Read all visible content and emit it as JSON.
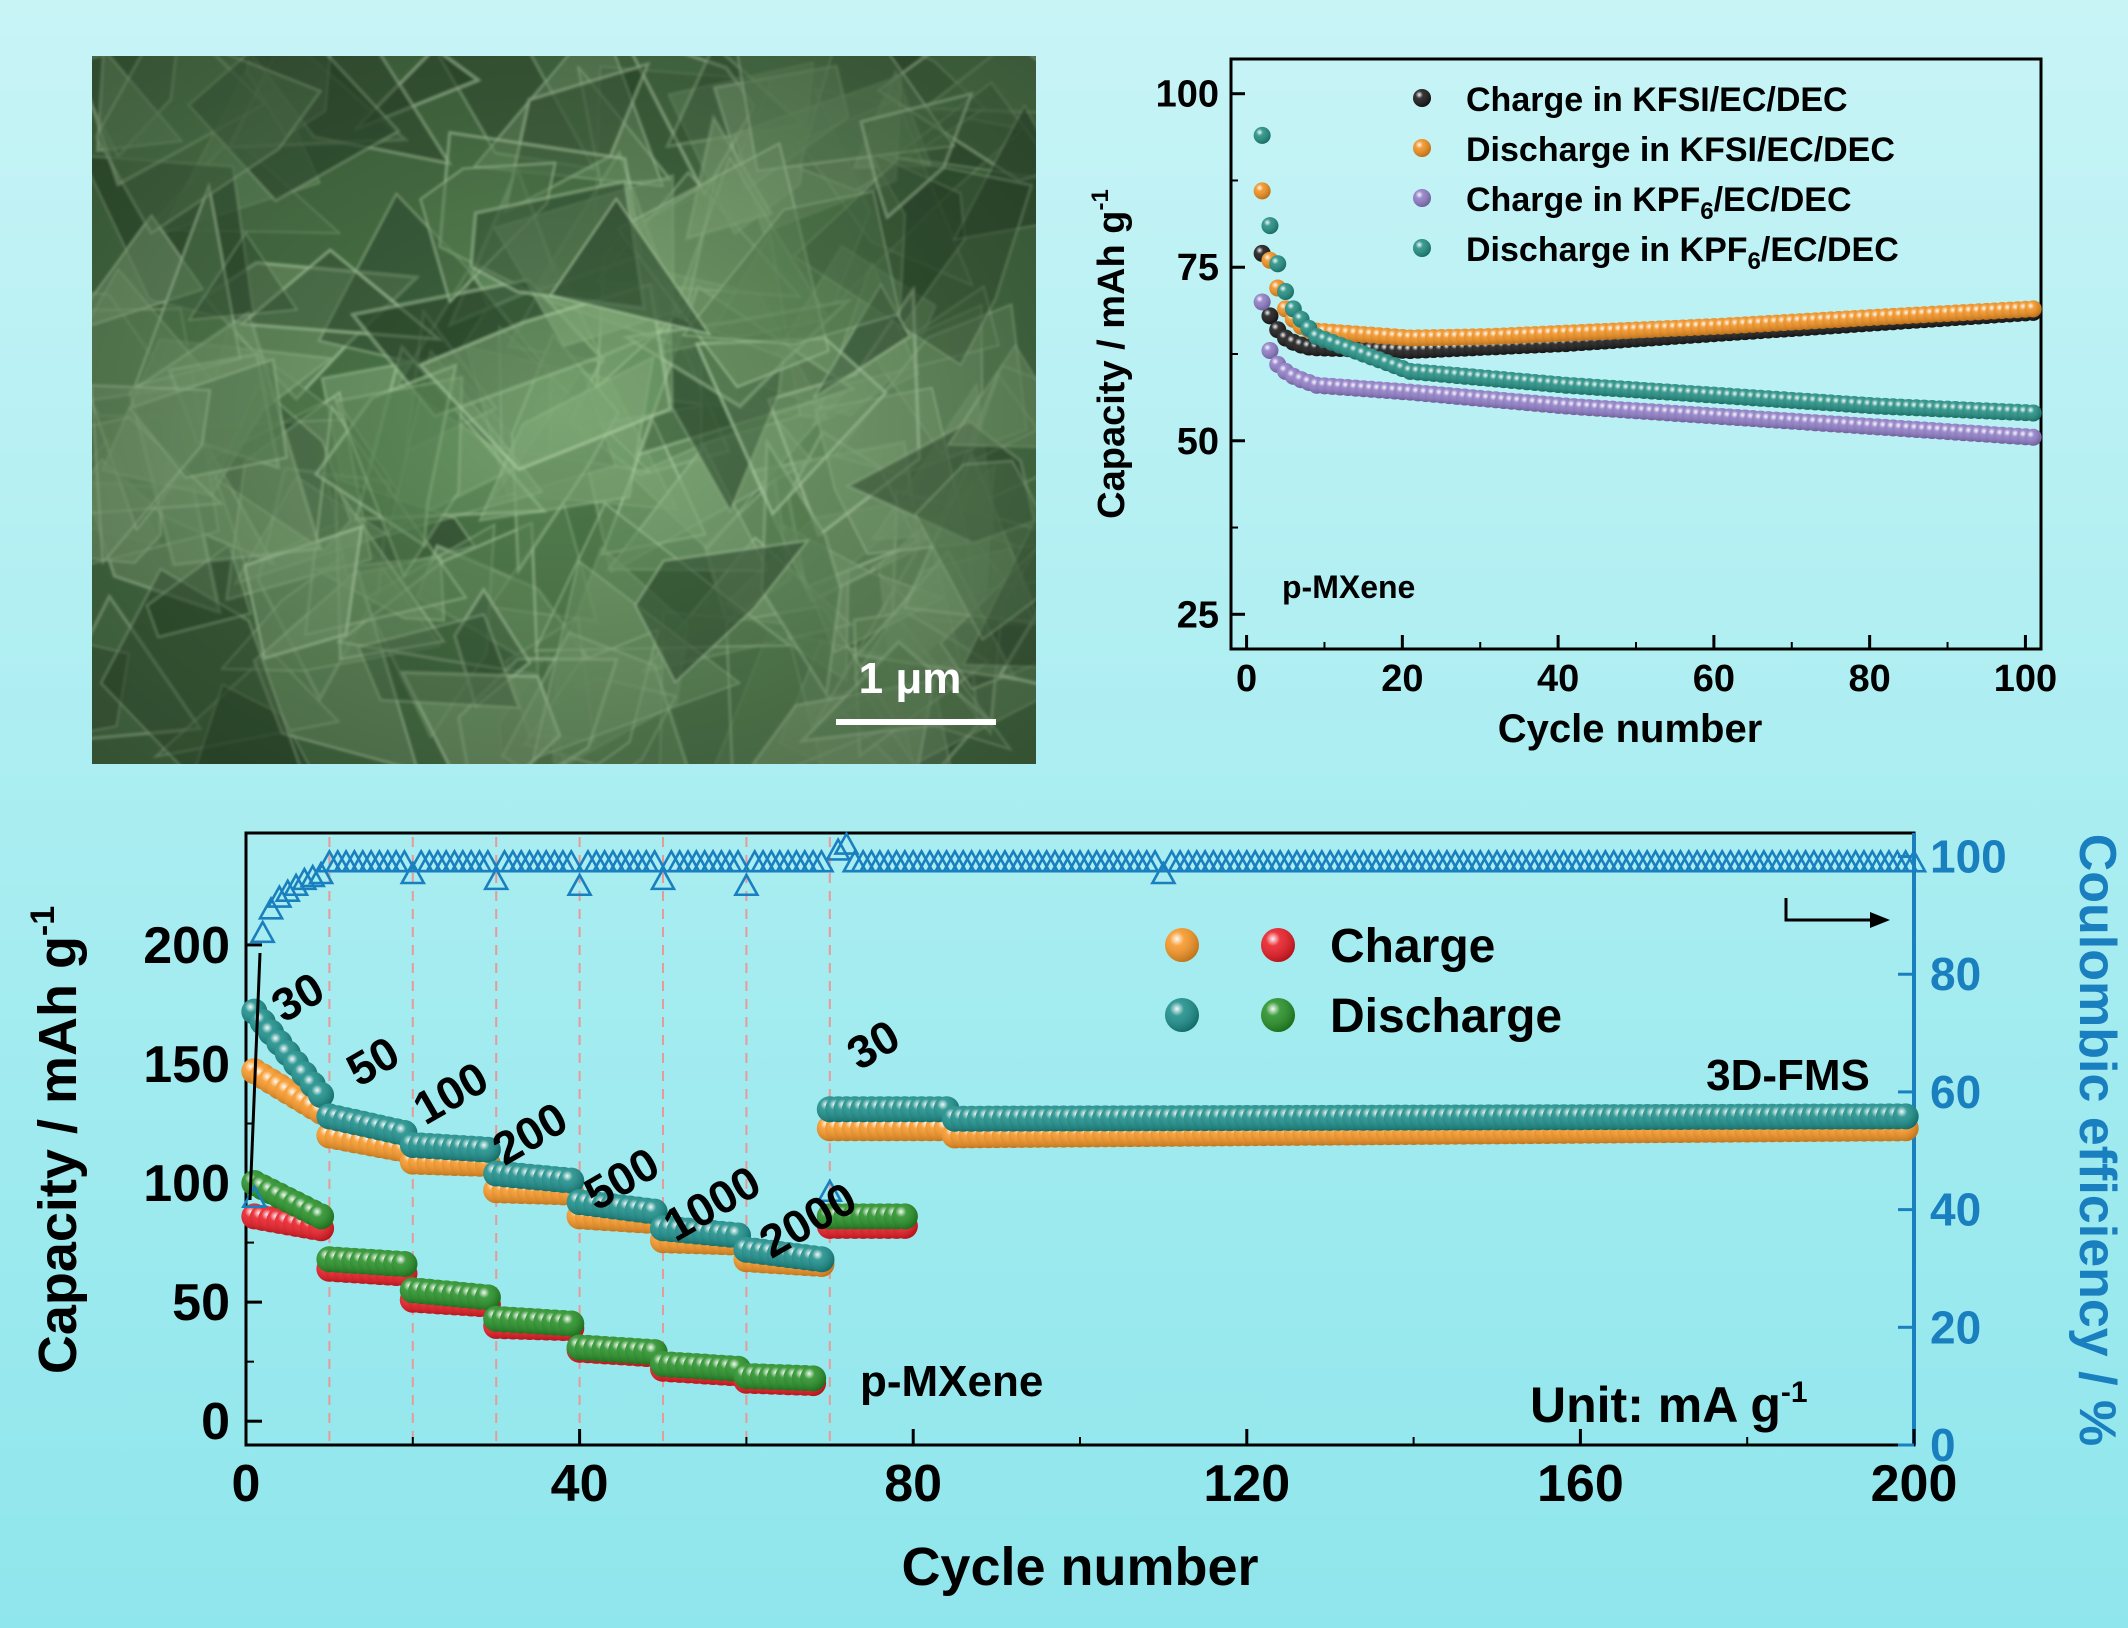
{
  "micrograph": {
    "scale_bar_label": "1 μm",
    "tint": "#5f8f5a"
  },
  "chart_data": [
    {
      "type": "scatter",
      "name_label": "p-MXene",
      "xlabel": "Cycle number",
      "ylabel": "Capacity / mAh g",
      "ylabel_sup": "-1",
      "xlim": [
        -2,
        102
      ],
      "ylim": [
        20,
        105
      ],
      "xticks": [
        0,
        20,
        40,
        60,
        80,
        100
      ],
      "yticks": [
        25,
        50,
        75,
        100
      ],
      "legend_position": "top-right",
      "series": [
        {
          "name": "Charge in KFSI/EC/DEC",
          "color": "#111111",
          "start_values": [
            77,
            68,
            66,
            64.8,
            64.2,
            63.8,
            63.5
          ],
          "tail": [
            [
              8,
              63.4
            ],
            [
              20,
              63.0
            ],
            [
              30,
              63.5
            ],
            [
              40,
              64.0
            ],
            [
              60,
              65.5
            ],
            [
              80,
              67.0
            ],
            [
              100,
              68.5
            ]
          ]
        },
        {
          "name": "Discharge in KFSI/EC/DEC",
          "color": "#f08c17",
          "start_values": [
            86,
            76,
            72,
            69,
            67.5,
            66.5,
            66
          ],
          "tail": [
            [
              8,
              65.8
            ],
            [
              20,
              64.8
            ],
            [
              30,
              65.0
            ],
            [
              40,
              65.5
            ],
            [
              60,
              66.5
            ],
            [
              80,
              67.8
            ],
            [
              100,
              69.0
            ]
          ]
        },
        {
          "name": "Charge in KPF6/EC/DEC",
          "color": "#8a77c4",
          "start_values": [
            70,
            63,
            61,
            60,
            59.3,
            58.8,
            58.4
          ],
          "tail": [
            [
              8,
              58.0
            ],
            [
              20,
              57.0
            ],
            [
              40,
              55.0
            ],
            [
              60,
              53.5
            ],
            [
              80,
              52.0
            ],
            [
              100,
              50.5
            ]
          ]
        },
        {
          "name": "Discharge in KPF6/EC/DEC",
          "color": "#1a8a7e",
          "start_values": [
            94,
            81,
            75.5,
            71.5,
            69,
            67.5,
            66.2
          ],
          "tail": [
            [
              8,
              65.0
            ],
            [
              14,
              62.5
            ],
            [
              20,
              60.0
            ],
            [
              30,
              59.0
            ],
            [
              40,
              58.0
            ],
            [
              60,
              56.5
            ],
            [
              80,
              55.0
            ],
            [
              100,
              54.0
            ]
          ]
        }
      ]
    },
    {
      "type": "scatter",
      "xlabel": "Cycle number",
      "ylabel": "Capacity / mAh g",
      "ylabel_sup": "-1",
      "y2label": "Coulombic efficiency / %",
      "xlim": [
        0,
        200
      ],
      "ylim": [
        -10,
        247
      ],
      "y2lim": [
        0,
        104
      ],
      "xticks": [
        0,
        40,
        80,
        120,
        160,
        200
      ],
      "yticks": [
        0,
        50,
        100,
        150,
        200
      ],
      "y2ticks": [
        0,
        20,
        40,
        60,
        80,
        100
      ],
      "rate_boundaries": [
        10,
        20,
        30,
        40,
        50,
        60,
        70
      ],
      "rate_labels": [
        {
          "text": "30",
          "x": 4.5,
          "y": 167
        },
        {
          "text": "50",
          "x": 13.5,
          "y": 140
        },
        {
          "text": "100",
          "x": 21.5,
          "y": 124
        },
        {
          "text": "200",
          "x": 31,
          "y": 107
        },
        {
          "text": "500",
          "x": 42,
          "y": 88
        },
        {
          "text": "1000",
          "x": 51.5,
          "y": 75
        },
        {
          "text": "2000",
          "x": 63,
          "y": 68
        },
        {
          "text": "30",
          "x": 73.5,
          "y": 147
        }
      ],
      "annotations": {
        "fms_label": "3D-FMS",
        "mxene_label": "p-MXene",
        "unit_label": "Unit: mA g",
        "unit_sup": "-1"
      },
      "legend": {
        "position": "top-center",
        "entries": [
          {
            "label": "Charge",
            "colors": [
              "#f7931e",
              "#e8141e"
            ]
          },
          {
            "label": "Discharge",
            "colors": [
              "#138a86",
              "#1f8c1f"
            ]
          }
        ]
      },
      "series": [
        {
          "name": "3D-FMS charge",
          "color": "#f7931e",
          "segments": [
            [
              1,
              10,
              147,
              130
            ],
            [
              10,
              20,
              120,
              114
            ],
            [
              20,
              30,
              109,
              108
            ],
            [
              30,
              40,
              97,
              96
            ],
            [
              40,
              50,
              86,
              84
            ],
            [
              50,
              60,
              76,
              75
            ],
            [
              60,
              70,
              68,
              66
            ],
            [
              70,
              85,
              123,
              123
            ],
            [
              85,
              200,
              120,
              123
            ]
          ]
        },
        {
          "name": "3D-FMS discharge",
          "color": "#138a86",
          "segments": [
            [
              1,
              10,
              172,
              137
            ],
            [
              10,
              20,
              128,
              121
            ],
            [
              20,
              30,
              116,
              114
            ],
            [
              30,
              40,
              104,
              101
            ],
            [
              40,
              50,
              92,
              88
            ],
            [
              50,
              60,
              81,
              78
            ],
            [
              60,
              70,
              72,
              68
            ],
            [
              70,
              85,
              131,
              131
            ],
            [
              85,
              200,
              127,
              128
            ]
          ]
        },
        {
          "name": "p-MXene charge",
          "color": "#e8141e",
          "segments": [
            [
              1,
              10,
              86,
              81
            ],
            [
              10,
              20,
              64,
              62
            ],
            [
              20,
              30,
              51,
              49
            ],
            [
              30,
              40,
              40,
              39
            ],
            [
              40,
              50,
              30,
              28
            ],
            [
              50,
              60,
              22,
              20
            ],
            [
              60,
              69,
              17,
              16
            ],
            [
              70,
              80,
              82,
              82
            ]
          ]
        },
        {
          "name": "p-MXene discharge",
          "color": "#1f8c1f",
          "segments": [
            [
              1,
              10,
              100,
              86
            ],
            [
              10,
              20,
              68,
              66
            ],
            [
              20,
              30,
              55,
              52
            ],
            [
              30,
              40,
              43,
              41
            ],
            [
              40,
              50,
              31,
              29
            ],
            [
              50,
              60,
              24,
              22
            ],
            [
              60,
              69,
              19,
              18
            ],
            [
              70,
              80,
              86,
              86
            ]
          ]
        },
        {
          "name": "Coulombic efficiency",
          "color": "#1a7fbf",
          "axis": "right",
          "first_values": [
            42,
            87,
            91,
            93,
            94,
            95,
            96,
            96.5,
            97
          ],
          "plateau": 99,
          "dips": [
            [
              20,
              97
            ],
            [
              30,
              96
            ],
            [
              40,
              95
            ],
            [
              50,
              96
            ],
            [
              60,
              95
            ],
            [
              70,
              43
            ],
            [
              71,
              101
            ],
            [
              72,
              102
            ],
            [
              110,
              97
            ]
          ]
        }
      ]
    }
  ]
}
